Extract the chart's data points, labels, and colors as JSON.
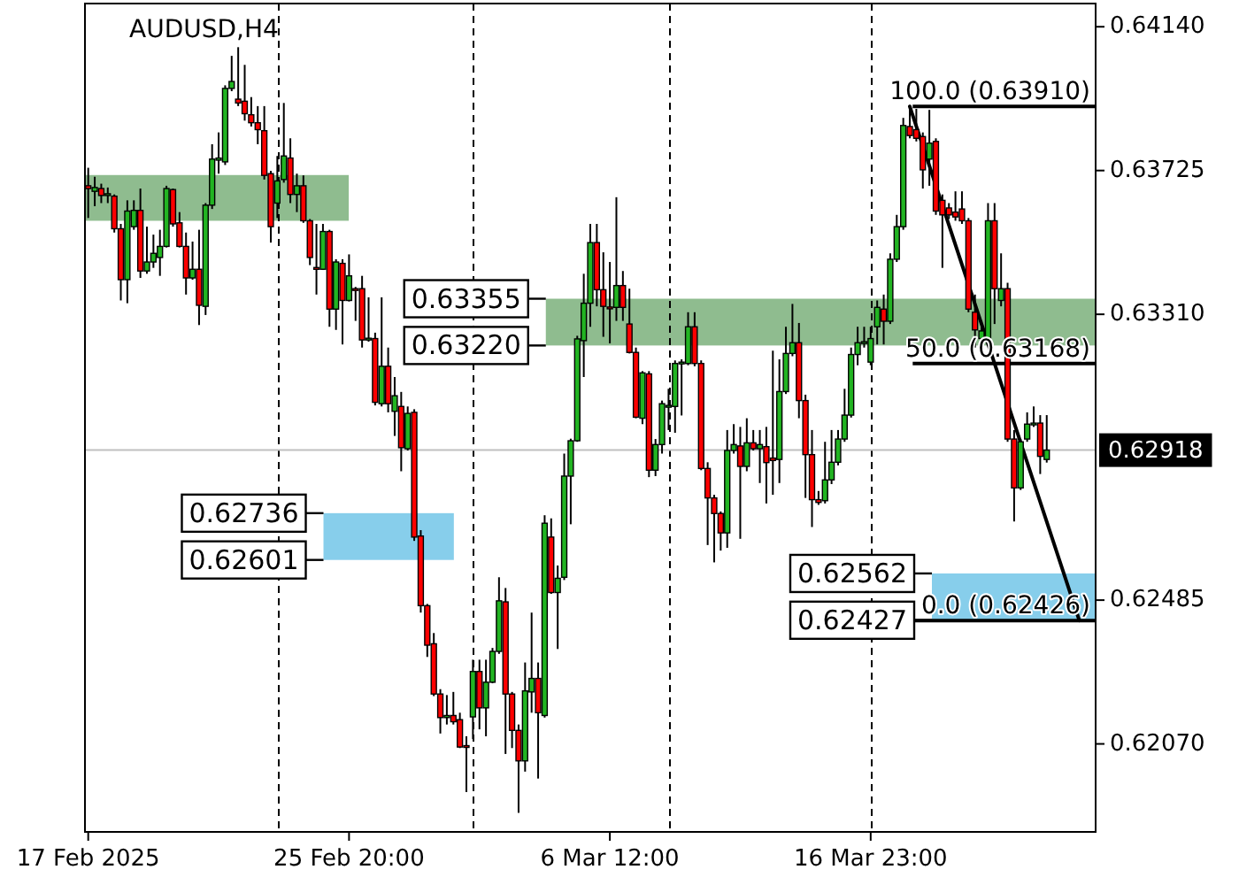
{
  "chart_data": {
    "type": "candlestick",
    "title": "AUDUSD,H4",
    "categories": [
      "17 Feb 2025",
      null,
      null,
      null,
      null,
      null,
      null,
      null,
      null,
      null,
      null,
      null,
      null,
      null,
      null,
      null,
      null,
      null,
      null,
      null,
      null,
      null,
      null,
      null,
      null,
      null,
      null,
      null,
      null,
      null,
      null,
      null,
      null,
      null,
      null,
      null,
      null,
      null,
      null,
      null,
      "25 Feb 20:00",
      null,
      null,
      null,
      null,
      null,
      null,
      null,
      null,
      null,
      null,
      null,
      null,
      null,
      null,
      null,
      null,
      null,
      null,
      null,
      null,
      null,
      null,
      null,
      null,
      null,
      null,
      null,
      null,
      null,
      null,
      null,
      null,
      null,
      null,
      null,
      null,
      null,
      null,
      null,
      "6 Mar 12:00",
      null,
      null,
      null,
      null,
      null,
      null,
      null,
      null,
      null,
      null,
      null,
      null,
      null,
      null,
      null,
      null,
      null,
      null,
      null,
      null,
      null,
      null,
      null,
      null,
      null,
      null,
      null,
      null,
      null,
      null,
      null,
      null,
      null,
      null,
      null,
      null,
      null,
      null,
      null,
      "16 Mar 23:00",
      null,
      null,
      null,
      null,
      null,
      null,
      null,
      null,
      null,
      null,
      null,
      null,
      null,
      null,
      null,
      null,
      null,
      null,
      null,
      null,
      null,
      null,
      null,
      null,
      null,
      null,
      null,
      null,
      null,
      null,
      null,
      null,
      null,
      null
    ],
    "ohlc": [
      [
        0.63681,
        0.63733,
        0.63588,
        0.63673
      ],
      [
        0.63665,
        0.63707,
        0.63622,
        0.63676
      ],
      [
        0.63673,
        0.63687,
        0.63631,
        0.63653
      ],
      [
        0.63653,
        0.63676,
        0.63631,
        0.63658
      ],
      [
        0.63651,
        0.63656,
        0.63546,
        0.63557
      ],
      [
        0.63557,
        0.63571,
        0.6335,
        0.6341
      ],
      [
        0.6341,
        0.63639,
        0.63342,
        0.63608
      ],
      [
        0.63563,
        0.63639,
        0.63554,
        0.6361
      ],
      [
        0.6361,
        0.63673,
        0.63415,
        0.63435
      ],
      [
        0.63435,
        0.63563,
        0.63427,
        0.63461
      ],
      [
        0.63461,
        0.6354,
        0.63444,
        0.63486
      ],
      [
        0.63474,
        0.63554,
        0.63421,
        0.63506
      ],
      [
        0.63506,
        0.63681,
        0.63503,
        0.63673
      ],
      [
        0.6367,
        0.63673,
        0.63563,
        0.63571
      ],
      [
        0.63574,
        0.63605,
        0.63503,
        0.63506
      ],
      [
        0.63506,
        0.63546,
        0.63367,
        0.63415
      ],
      [
        0.63415,
        0.6352,
        0.6341,
        0.6344
      ],
      [
        0.6344,
        0.63554,
        0.63279,
        0.63336
      ],
      [
        0.63333,
        0.63631,
        0.63308,
        0.63625
      ],
      [
        0.63625,
        0.63801,
        0.63614,
        0.63758
      ],
      [
        0.63755,
        0.63835,
        0.63716,
        0.63761
      ],
      [
        0.6375,
        0.63971,
        0.63741,
        0.63962
      ],
      [
        0.63962,
        0.64056,
        0.63954,
        0.63982
      ],
      [
        0.63931,
        0.64081,
        0.63911,
        0.6392
      ],
      [
        0.63925,
        0.6403,
        0.63869,
        0.63889
      ],
      [
        0.63886,
        0.63937,
        0.63852,
        0.63863
      ],
      [
        0.63863,
        0.63911,
        0.63801,
        0.63843
      ],
      [
        0.6384,
        0.63911,
        0.63699,
        0.63711
      ],
      [
        0.63716,
        0.63724,
        0.63517,
        0.63563
      ],
      [
        0.63631,
        0.63767,
        0.63588,
        0.63695
      ],
      [
        0.63699,
        0.6392,
        0.6369,
        0.63767
      ],
      [
        0.63761,
        0.63818,
        0.63631,
        0.63656
      ],
      [
        0.63656,
        0.63716,
        0.63605,
        0.63681
      ],
      [
        0.63681,
        0.63711,
        0.63574,
        0.6358
      ],
      [
        0.6358,
        0.63585,
        0.63452,
        0.63474
      ],
      [
        0.63445,
        0.63571,
        0.63367,
        0.63442
      ],
      [
        0.6344,
        0.63571,
        0.63438,
        0.63549
      ],
      [
        0.63549,
        0.63554,
        0.63274,
        0.63325
      ],
      [
        0.63325,
        0.63469,
        0.63265,
        0.63461
      ],
      [
        0.63457,
        0.63469,
        0.63223,
        0.6335
      ],
      [
        0.6335,
        0.63483,
        0.63347,
        0.63421
      ],
      [
        0.63384,
        0.63389,
        0.63291,
        0.63382
      ],
      [
        0.63384,
        0.63421,
        0.63214,
        0.63236
      ],
      [
        0.63236,
        0.63359,
        0.63231,
        0.63241
      ],
      [
        0.6324,
        0.63257,
        0.63047,
        0.63056
      ],
      [
        0.63052,
        0.63359,
        0.63044,
        0.6316
      ],
      [
        0.6316,
        0.63214,
        0.63027,
        0.63052
      ],
      [
        0.6303,
        0.63129,
        0.62959,
        0.63075
      ],
      [
        0.63044,
        0.63086,
        0.62857,
        0.62925
      ],
      [
        0.62922,
        0.63044,
        0.62917,
        0.63024
      ],
      [
        0.63027,
        0.63036,
        0.62656,
        0.62667
      ],
      [
        0.6267,
        0.62687,
        0.62449,
        0.62469
      ],
      [
        0.62469,
        0.62474,
        0.62321,
        0.62355
      ],
      [
        0.62359,
        0.6239,
        0.62208,
        0.62214
      ],
      [
        0.62214,
        0.62228,
        0.621,
        0.62146
      ],
      [
        0.62146,
        0.62211,
        0.62126,
        0.62152
      ],
      [
        0.62152,
        0.6222,
        0.62126,
        0.62134
      ],
      [
        0.6214,
        0.6216,
        0.62058,
        0.62061
      ],
      [
        0.62065,
        0.62092,
        0.61931,
        0.62061
      ],
      [
        0.62148,
        0.62313,
        0.62084,
        0.62279
      ],
      [
        0.62279,
        0.62313,
        0.62112,
        0.62174
      ],
      [
        0.62174,
        0.62313,
        0.62092,
        0.62248
      ],
      [
        0.62248,
        0.62347,
        0.62245,
        0.62337
      ],
      [
        0.62337,
        0.62551,
        0.6233,
        0.62483
      ],
      [
        0.6248,
        0.6252,
        0.62041,
        0.62214
      ],
      [
        0.62214,
        0.6222,
        0.62058,
        0.62109
      ],
      [
        0.62109,
        0.62126,
        0.61871,
        0.62021
      ],
      [
        0.62021,
        0.62305,
        0.6199,
        0.62223
      ],
      [
        0.6222,
        0.62449,
        0.6216,
        0.62259
      ],
      [
        0.62259,
        0.62305,
        0.6197,
        0.6216
      ],
      [
        0.62152,
        0.6273,
        0.62146,
        0.62707
      ],
      [
        0.62667,
        0.62721,
        0.62503,
        0.62507
      ],
      [
        0.62507,
        0.62585,
        0.62344,
        0.62548
      ],
      [
        0.62551,
        0.62908,
        0.62543,
        0.62843
      ],
      [
        0.62843,
        0.62951,
        0.62704,
        0.62945
      ],
      [
        0.62945,
        0.63248,
        0.62942,
        0.63239
      ],
      [
        0.63234,
        0.63427,
        0.63129,
        0.63342
      ],
      [
        0.63342,
        0.63571,
        0.63274,
        0.63517
      ],
      [
        0.63517,
        0.63571,
        0.63333,
        0.63381
      ],
      [
        0.63381,
        0.63489,
        0.63245,
        0.63333
      ],
      [
        0.63331,
        0.63461,
        0.63226,
        0.63328
      ],
      [
        0.6333,
        0.63648,
        0.63291,
        0.63393
      ],
      [
        0.63393,
        0.63435,
        0.63291,
        0.6333
      ],
      [
        0.63282,
        0.63384,
        0.63197,
        0.632
      ],
      [
        0.632,
        0.63214,
        0.6301,
        0.63013
      ],
      [
        0.6301,
        0.63146,
        0.62993,
        0.63141
      ],
      [
        0.63138,
        0.63146,
        0.6284,
        0.6286
      ],
      [
        0.6286,
        0.6295,
        0.62843,
        0.62934
      ],
      [
        0.62934,
        0.63061,
        0.62908,
        0.63052
      ],
      [
        0.63044,
        0.63095,
        0.62976,
        0.63047
      ],
      [
        0.63044,
        0.63177,
        0.62968,
        0.63168
      ],
      [
        0.63168,
        0.6318,
        0.63018,
        0.63172
      ],
      [
        0.63168,
        0.63316,
        0.63163,
        0.63274
      ],
      [
        0.63274,
        0.63316,
        0.6316,
        0.63168
      ],
      [
        0.63168,
        0.63177,
        0.6286,
        0.62865
      ],
      [
        0.62865,
        0.62883,
        0.62644,
        0.6278
      ],
      [
        0.6278,
        0.62789,
        0.62594,
        0.62735
      ],
      [
        0.62735,
        0.62741,
        0.62628,
        0.62679
      ],
      [
        0.62679,
        0.62976,
        0.62636,
        0.62917
      ],
      [
        0.62917,
        0.62993,
        0.62908,
        0.62934
      ],
      [
        0.6293,
        0.62985,
        0.62662,
        0.62871
      ],
      [
        0.62871,
        0.6301,
        0.62857,
        0.62939
      ],
      [
        0.62939,
        0.62976,
        0.62917,
        0.62922
      ],
      [
        0.62922,
        0.62976,
        0.62823,
        0.62934
      ],
      [
        0.62928,
        0.62985,
        0.62764,
        0.62882
      ],
      [
        0.62895,
        0.63205,
        0.62789,
        0.62888
      ],
      [
        0.62891,
        0.6318,
        0.62823,
        0.63087
      ],
      [
        0.63087,
        0.63274,
        0.6308,
        0.63197
      ],
      [
        0.63197,
        0.6334,
        0.63189,
        0.63228
      ],
      [
        0.63228,
        0.63285,
        0.6301,
        0.63061
      ],
      [
        0.63061,
        0.63078,
        0.6278,
        0.62905
      ],
      [
        0.62905,
        0.62976,
        0.62696,
        0.62775
      ],
      [
        0.62775,
        0.628,
        0.6276,
        0.62767
      ],
      [
        0.62772,
        0.62942,
        0.62764,
        0.62832
      ],
      [
        0.62832,
        0.62976,
        0.6282,
        0.62883
      ],
      [
        0.62883,
        0.62976,
        0.62874,
        0.6295
      ],
      [
        0.6295,
        0.63095,
        0.62942,
        0.63019
      ],
      [
        0.63019,
        0.63214,
        0.63012,
        0.63194
      ],
      [
        0.63194,
        0.63274,
        0.63163,
        0.63228
      ],
      [
        0.63228,
        0.63274,
        0.63214,
        0.63231
      ],
      [
        0.63172,
        0.63274,
        0.63163,
        0.6324
      ],
      [
        0.63274,
        0.6335,
        0.63223,
        0.6333
      ],
      [
        0.63325,
        0.63367,
        0.63223,
        0.6329
      ],
      [
        0.6329,
        0.63486,
        0.63282,
        0.63469
      ],
      [
        0.63469,
        0.63597,
        0.63461,
        0.63563
      ],
      [
        0.63563,
        0.63877,
        0.63554,
        0.63855
      ],
      [
        0.63852,
        0.6391,
        0.63818,
        0.63826
      ],
      [
        0.63843,
        0.63903,
        0.63809,
        0.63818
      ],
      [
        0.63823,
        0.63835,
        0.63673,
        0.63727
      ],
      [
        0.63758,
        0.639,
        0.63681,
        0.63804
      ],
      [
        0.63809,
        0.63818,
        0.63597,
        0.63608
      ],
      [
        0.63639,
        0.63656,
        0.63444,
        0.63597
      ],
      [
        0.63617,
        0.63631,
        0.63585,
        0.63597
      ],
      [
        0.63605,
        0.63665,
        0.6358,
        0.63591
      ],
      [
        0.63614,
        0.63665,
        0.63571,
        0.6358
      ],
      [
        0.6358,
        0.63588,
        0.63316,
        0.63325
      ],
      [
        0.63316,
        0.63367,
        0.63214,
        0.63265
      ],
      [
        0.6324,
        0.63291,
        0.63214,
        0.63262
      ],
      [
        0.6324,
        0.63631,
        0.63231,
        0.6358
      ],
      [
        0.6358,
        0.63631,
        0.63282,
        0.63384
      ],
      [
        0.6335,
        0.63486,
        0.63333,
        0.63384
      ],
      [
        0.63384,
        0.63401,
        0.62942,
        0.6295
      ],
      [
        0.6295,
        0.62976,
        0.62712,
        0.62809
      ],
      [
        0.62809,
        0.6295,
        0.62803,
        0.62942
      ],
      [
        0.6295,
        0.63027,
        0.62942,
        0.62993
      ],
      [
        0.62993,
        0.63044,
        0.62985,
        0.62996
      ],
      [
        0.62996,
        0.63019,
        0.62849,
        0.629
      ],
      [
        0.62891,
        0.63019,
        0.62882,
        0.62918
      ],
      null,
      null,
      null,
      null,
      null,
      null,
      null
    ],
    "colors": [
      "#ff0000",
      "#22b422",
      "#ff0000",
      "#22b422",
      "#ff0000",
      "#ff0000",
      "#22b422",
      "#22b422",
      "#ff0000",
      "#22b422",
      "#22b422",
      "#22b422",
      "#22b422",
      "#ff0000",
      "#ff0000",
      "#ff0000",
      "#22b422",
      "#ff0000",
      "#22b422",
      "#22b422",
      "#22b422",
      "#22b422",
      "#22b422",
      "#ff0000",
      "#ff0000",
      "#ff0000",
      "#ff0000",
      "#ff0000",
      "#ff0000",
      "#22b422",
      "#22b422",
      "#ff0000",
      "#22b422",
      "#ff0000",
      "#ff0000",
      "#ff0000",
      "#22b422",
      "#ff0000",
      "#22b422",
      "#ff0000",
      "#22b422",
      "#ff0000",
      "#ff0000",
      "#22b422",
      "#ff0000",
      "#22b422",
      "#ff0000",
      "#22b422",
      "#ff0000",
      "#22b422",
      "#ff0000",
      "#ff0000",
      "#ff0000",
      "#ff0000",
      "#ff0000",
      "#22b422",
      "#ff0000",
      "#ff0000",
      "#ff0000",
      "#22b422",
      "#ff0000",
      "#22b422",
      "#22b422",
      "#22b422",
      "#ff0000",
      "#ff0000",
      "#ff0000",
      "#22b422",
      "#22b422",
      "#ff0000",
      "#22b422",
      "#ff0000",
      "#22b422",
      "#22b422",
      "#22b422",
      "#22b422",
      "#22b422",
      "#22b422",
      "#ff0000",
      "#ff0000",
      "#ff0000",
      "#22b422",
      "#ff0000",
      "#ff0000",
      "#ff0000",
      "#22b422",
      "#ff0000",
      "#22b422",
      "#22b422",
      "#22b422",
      "#22b422",
      "#22b422",
      "#22b422",
      "#ff0000",
      "#ff0000",
      "#ff0000",
      "#ff0000",
      "#ff0000",
      "#22b422",
      "#22b422",
      "#ff0000",
      "#22b422",
      "#ff0000",
      "#22b422",
      "#ff0000",
      "#ff0000",
      "#22b422",
      "#22b422",
      "#22b422",
      "#ff0000",
      "#ff0000",
      "#ff0000",
      "#ff0000",
      "#22b422",
      "#22b422",
      "#22b422",
      "#22b422",
      "#22b422",
      "#22b422",
      "#22b422",
      "#22b422",
      "#22b422",
      "#ff0000",
      "#22b422",
      "#22b422",
      "#22b422",
      "#ff0000",
      "#ff0000",
      "#ff0000",
      "#22b422",
      "#ff0000",
      "#ff0000",
      "#ff0000",
      "#ff0000",
      "#ff0000",
      "#ff0000",
      "#ff0000",
      "#22b422",
      "#22b422",
      "#ff0000",
      "#22b422",
      "#ff0000",
      "#ff0000",
      "#22b422",
      "#22b422",
      "#22b422",
      "#ff0000",
      "#22b422",
      null,
      null,
      null,
      null,
      null,
      null,
      null
    ],
    "ylim": [
      0.61816,
      0.64207
    ],
    "yticks": [
      {
        "value": 0.6207,
        "label": "0.62070"
      },
      0.62485,
      {
        "value": 0.6331,
        "label": "0.63310"
      },
      0.63725,
      {
        "value": 0.6414,
        "label": "0.64140"
      }
    ],
    "series": [
      {
        "type": "line",
        "color": "#000000",
        "values": [
          null,
          null,
          null,
          null,
          null,
          null,
          null,
          null,
          null,
          null,
          null,
          null,
          null,
          null,
          null,
          null,
          null,
          null,
          null,
          null,
          null,
          null,
          null,
          null,
          null,
          null,
          null,
          null,
          null,
          null,
          null,
          null,
          null,
          null,
          null,
          null,
          null,
          null,
          null,
          null,
          null,
          null,
          null,
          null,
          null,
          null,
          null,
          null,
          null,
          null,
          null,
          null,
          null,
          null,
          null,
          null,
          null,
          null,
          null,
          null,
          null,
          null,
          null,
          null,
          null,
          null,
          null,
          null,
          null,
          null,
          null,
          null,
          null,
          null,
          null,
          null,
          null,
          null,
          null,
          null,
          null,
          null,
          null,
          null,
          null,
          null,
          null,
          null,
          null,
          null,
          null,
          null,
          null,
          null,
          null,
          null,
          null,
          null,
          null,
          null,
          null,
          null,
          null,
          null,
          null,
          null,
          null,
          null,
          null,
          null,
          null,
          null,
          null,
          null,
          null,
          null,
          null,
          null,
          null,
          null,
          null,
          null,
          null,
          null,
          null,
          null,
          0.6391,
          null,
          null,
          null,
          null,
          null,
          null,
          null,
          null,
          null,
          null,
          null,
          null,
          null,
          null,
          null,
          null,
          null,
          null,
          null,
          null,
          null,
          null,
          null,
          null,
          null,
          0.62426,
          null,
          null
        ]
      }
    ],
    "ref_lines": [
      {
        "axis": "y",
        "value": 0.62918,
        "label": "0.62918",
        "color": "#c0c0c0"
      },
      {
        "axis": "y",
        "value": 0.6391,
        "label": "100.0 (0.63910)",
        "color": "#000000"
      },
      {
        "axis": "y",
        "value": 0.63168,
        "label": "50.0 (0.63168)",
        "color": "#000000"
      },
      {
        "axis": "y",
        "value": 0.62426,
        "label": "0.0 (0.62426)",
        "color": "#000000"
      }
    ],
    "bands": [
      {
        "axis": "y",
        "from": 0.6358,
        "to": 0.63712,
        "color": "#8fbc8f"
      },
      {
        "axis": "y",
        "from": 0.62601,
        "to": 0.62736,
        "color": "#87ceeb"
      },
      {
        "axis": "y",
        "from": 0.6322,
        "to": 0.63355,
        "color": "#8fbc8f"
      },
      {
        "axis": "y",
        "from": 0.62427,
        "to": 0.62562,
        "color": "#87ceeb"
      }
    ],
    "annotations": [
      "0.63355",
      "0.63220",
      "0.62736",
      "0.62601",
      "0.62562",
      "0.62427"
    ]
  }
}
